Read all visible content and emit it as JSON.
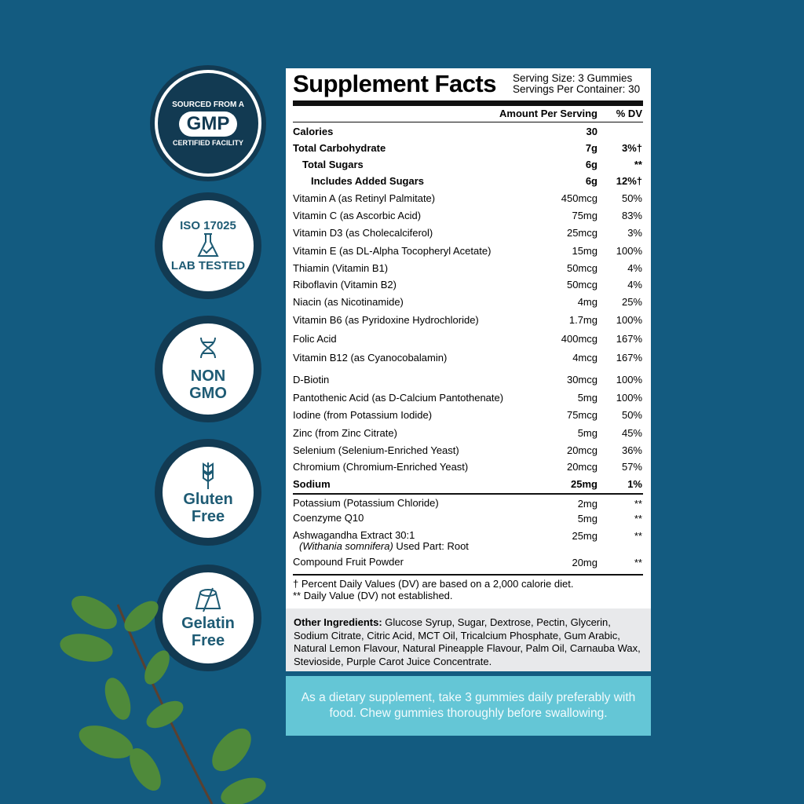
{
  "badges": [
    {
      "icon": "gmp-seal",
      "top": "SOURCED FROM A",
      "main": "GMP",
      "bottom": "CERTIFIED FACILITY"
    },
    {
      "icon": "flask-check-icon",
      "top": "ISO 17025",
      "main": "",
      "bottom": "LAB TESTED"
    },
    {
      "icon": "dna-icon",
      "top": "",
      "main": "NON",
      "bottom": "GMO"
    },
    {
      "icon": "wheat-icon",
      "top": "",
      "main": "Gluten",
      "bottom": "Free"
    },
    {
      "icon": "gelatin-crossed-icon",
      "top": "",
      "main": "Gelatin",
      "bottom": "Free"
    }
  ],
  "facts": {
    "title": "Supplement Facts",
    "serving_size": "Serving Size: 3 Gummies",
    "servings_per_container": "Servings Per Container: 30",
    "col_amount": "Amount Per Serving",
    "col_dv": "% DV",
    "rows": [
      {
        "name": "Calories",
        "amount": "30",
        "dv": ""
      },
      {
        "name": "Total Carbohydrate",
        "amount": "7g",
        "dv": "3%†"
      },
      {
        "name": "Total Sugars",
        "amount": "6g",
        "dv": "**"
      },
      {
        "name": "Includes Added Sugars",
        "amount": "6g",
        "dv": "12%†"
      },
      {
        "name": "Vitamin A (as Retinyl Palmitate)",
        "amount": "450mcg",
        "dv": "50%"
      },
      {
        "name": "Vitamin C (as Ascorbic Acid)",
        "amount": "75mg",
        "dv": "83%"
      },
      {
        "name": "Vitamin D3 (as Cholecalciferol)",
        "amount": "25mcg",
        "dv": "3%"
      },
      {
        "name": "Vitamin E (as DL-Alpha Tocopheryl Acetate)",
        "amount": "15mg",
        "dv": "100%"
      },
      {
        "name": "Thiamin (Vitamin B1)",
        "amount": "50mcg",
        "dv": "4%"
      },
      {
        "name": "Riboflavin (Vitamin B2)",
        "amount": "50mcg",
        "dv": "4%"
      },
      {
        "name": "Niacin (as Nicotinamide)",
        "amount": "4mg",
        "dv": "25%"
      },
      {
        "name": "Vitamin B6 (as Pyridoxine Hydrochloride)",
        "amount": "1.7mg",
        "dv": "100%"
      },
      {
        "name": "Folic Acid",
        "amount": "400mcg",
        "dv": "167%"
      },
      {
        "name": "Vitamin B12 (as Cyanocobalamin)",
        "amount": "4mcg",
        "dv": "167%"
      },
      {
        "name": "D-Biotin",
        "amount": "30mcg",
        "dv": "100%"
      },
      {
        "name": "Pantothenic Acid (as D-Calcium Pantothenate)",
        "amount": "5mg",
        "dv": "100%"
      },
      {
        "name": "Iodine (from Potassium Iodide)",
        "amount": "75mcg",
        "dv": "50%"
      },
      {
        "name": "Zinc (from Zinc Citrate)",
        "amount": "5mg",
        "dv": "45%"
      },
      {
        "name": "Selenium (Selenium-Enriched Yeast)",
        "amount": "20mcg",
        "dv": "36%"
      },
      {
        "name": "Chromium (Chromium-Enriched Yeast)",
        "amount": "20mcg",
        "dv": "57%"
      },
      {
        "name": "Sodium",
        "amount": "25mg",
        "dv": "1%"
      }
    ],
    "rows2": [
      {
        "name": "Potassium (Potassium Chloride)",
        "amount": "2mg",
        "dv": "**"
      },
      {
        "name": "Coenzyme Q10",
        "amount": "5mg",
        "dv": "**"
      },
      {
        "name": "Ashwagandha Extract 30:1",
        "sub_italic": "(Withania somnifera)",
        "sub": " Used Part: Root",
        "amount": "25mg",
        "dv": "**"
      },
      {
        "name": "Compound Fruit Powder",
        "amount": "20mg",
        "dv": "**"
      }
    ],
    "footnote1": "† Percent Daily Values (DV) are based on a 2,000 calorie diet.",
    "footnote2": "** Daily Value (DV) not established."
  },
  "other_ingredients": {
    "label": "Other Ingredients:",
    "text": " Glucose Syrup, Sugar, Dextrose, Pectin, Glycerin, Sodium Citrate, Citric Acid, MCT Oil, Tricalcium Phosphate, Gum Arabic, Natural Lemon Flavour, Natural Pineapple Flavour, Palm Oil, Carnauba Wax, Stevioside, Purple Carot Juice Concentrate."
  },
  "directions": "As a dietary supplement, take 3 gummies daily preferably with food. Chew gummies thoroughly before swallowing.",
  "colors": {
    "background": "#135b80",
    "badge": "#123a52",
    "directions_bg": "#64c6d6"
  }
}
